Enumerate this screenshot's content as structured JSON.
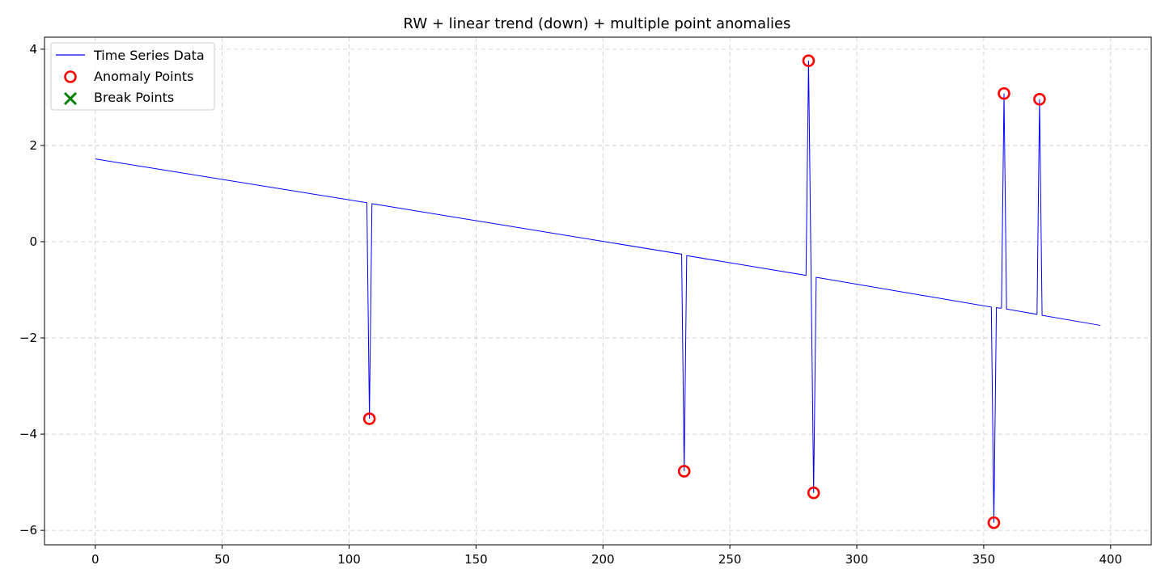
{
  "chart_data": {
    "type": "line",
    "title": "RW + linear trend (down) + multiple point anomalies",
    "xlabel": "",
    "ylabel": "",
    "xlim": [
      -20,
      416
    ],
    "ylim": [
      -6.3,
      4.25
    ],
    "x_ticks": [
      0,
      50,
      100,
      150,
      200,
      250,
      300,
      350,
      400
    ],
    "y_ticks": [
      -6,
      -4,
      -2,
      0,
      2,
      4
    ],
    "x_tick_labels": [
      "0",
      "50",
      "100",
      "150",
      "200",
      "250",
      "300",
      "350",
      "400"
    ],
    "y_tick_labels": [
      "−6",
      "−4",
      "−2",
      "0",
      "2",
      "4"
    ],
    "grid": true,
    "legend_position": "upper-left",
    "legend": {
      "line_label": "Time Series Data",
      "anomaly_label": "Anomaly Points",
      "break_label": "Break Points"
    },
    "series": [
      {
        "name": "Time Series Data",
        "color": "#0000ff",
        "points": [
          [
            0,
            1.72
          ],
          [
            107,
            0.81
          ],
          [
            108,
            -3.68
          ],
          [
            109,
            0.79
          ],
          [
            231,
            -0.26
          ],
          [
            232,
            -4.77
          ],
          [
            233,
            -0.29
          ],
          [
            280,
            -0.7
          ],
          [
            281,
            3.76
          ],
          [
            282,
            -0.72
          ],
          [
            283,
            -5.22
          ],
          [
            284,
            -0.74
          ],
          [
            353,
            -1.36
          ],
          [
            354,
            -5.84
          ],
          [
            355,
            -1.37
          ],
          [
            356,
            -1.38
          ],
          [
            357,
            -1.38
          ],
          [
            358,
            3.08
          ],
          [
            359,
            -1.4
          ],
          [
            371,
            -1.51
          ],
          [
            372,
            2.96
          ],
          [
            373,
            -1.53
          ],
          [
            396,
            -1.74
          ]
        ]
      }
    ],
    "anomaly_points": {
      "name": "Anomaly Points",
      "color": "#ff0000",
      "points": [
        [
          108,
          -3.68
        ],
        [
          232,
          -4.77
        ],
        [
          281,
          3.76
        ],
        [
          283,
          -5.22
        ],
        [
          354,
          -5.84
        ],
        [
          358,
          3.08
        ],
        [
          372,
          2.96
        ]
      ]
    },
    "break_points": {
      "name": "Break Points",
      "color": "#008000",
      "points": []
    }
  }
}
